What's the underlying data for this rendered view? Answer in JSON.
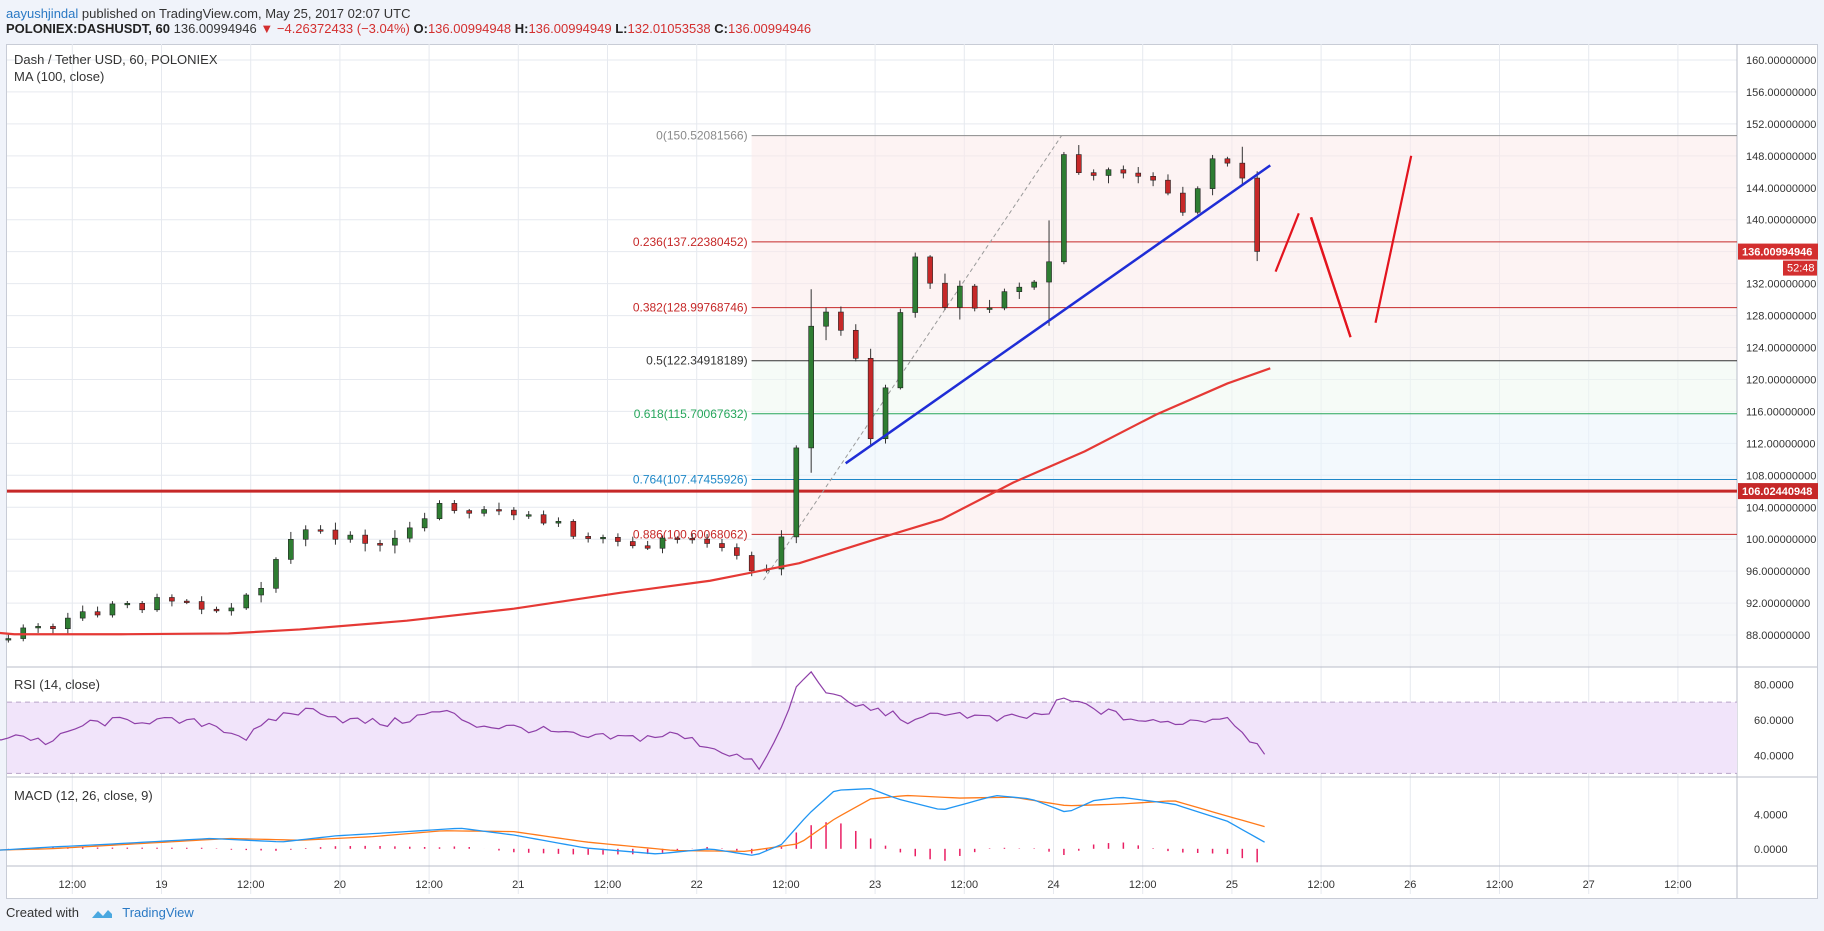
{
  "header": {
    "author": "aayushjindal",
    "published_text": "published on TradingView.com, May 25, 2017 02:07 UTC",
    "symbol": "POLONIEX:DASHUSDT, 60",
    "last": "136.00994946",
    "change": "▼ −4.26372433 (−3.04%)",
    "o_label": "O:",
    "o_value": "136.00994948",
    "h_label": "H:",
    "h_value": "136.00994949",
    "l_label": "L:",
    "l_value": "132.01053538",
    "c_label": "C:",
    "c_value": "136.00994946"
  },
  "legend": {
    "title": "Dash / Tether USD, 60, POLONIEX",
    "ma": "MA (100, close)",
    "rsi": "RSI (14, close)",
    "macd": "MACD (12, 26, close, 9)"
  },
  "footer": {
    "created_with": "Created with",
    "brand": "TradingView"
  },
  "chart_data": {
    "type": "candlestick",
    "colors": {
      "up": "#2e7d32",
      "down": "#c62828",
      "ma": "#e53935",
      "trendline": "#1f2dd6",
      "rsi": "#8e3fa8",
      "macd": "#2196f3",
      "signal": "#ff7a1a",
      "hist": "#e91e63",
      "support": "#c62828"
    },
    "x_ticks": [
      {
        "label": "12:00",
        "d": 0.125
      },
      {
        "label": "19",
        "d": 0.625
      },
      {
        "label": "12:00",
        "d": 1.125
      },
      {
        "label": "20",
        "d": 1.625
      },
      {
        "label": "12:00",
        "d": 2.125
      },
      {
        "label": "21",
        "d": 2.625
      },
      {
        "label": "12:00",
        "d": 3.125
      },
      {
        "label": "22",
        "d": 3.625
      },
      {
        "label": "12:00",
        "d": 4.125
      },
      {
        "label": "23",
        "d": 4.625
      },
      {
        "label": "12:00",
        "d": 5.125
      },
      {
        "label": "24",
        "d": 5.625
      },
      {
        "label": "12:00",
        "d": 6.125
      },
      {
        "label": "25",
        "d": 6.625
      },
      {
        "label": "12:00",
        "d": 7.125
      },
      {
        "label": "26",
        "d": 7.625
      },
      {
        "label": "12:00",
        "d": 8.125
      },
      {
        "label": "27",
        "d": 8.625
      },
      {
        "label": "12:00",
        "d": 9.125
      }
    ],
    "price_axis": {
      "range": [
        84,
        162
      ],
      "ticks": [
        "88.00000000",
        "92.00000000",
        "96.00000000",
        "100.00000000",
        "104.00000000",
        "108.00000000",
        "112.00000000",
        "116.00000000",
        "120.00000000",
        "124.00000000",
        "128.00000000",
        "132.00000000",
        "136.00000000",
        "140.00000000",
        "144.00000000",
        "148.00000000",
        "152.00000000",
        "156.00000000",
        "160.00000000"
      ],
      "last_price_label": "136.00994946",
      "countdown": "52:48",
      "support_label": "106.02440948"
    },
    "support_level": 106.02440948,
    "fib_levels": [
      {
        "ratio": "0",
        "value": "150.52081566",
        "price": 150.52081566,
        "color": "#8a8a8a"
      },
      {
        "ratio": "0.236",
        "value": "137.22380452",
        "price": 137.22380452,
        "color": "#c62828"
      },
      {
        "ratio": "0.382",
        "value": "128.99768746",
        "price": 128.99768746,
        "color": "#c62828"
      },
      {
        "ratio": "0.5",
        "value": "122.34918189",
        "price": 122.34918189,
        "color": "#333333"
      },
      {
        "ratio": "0.618",
        "value": "115.70067632",
        "price": 115.70067632,
        "color": "#26a65b"
      },
      {
        "ratio": "0.764",
        "value": "107.47455926",
        "price": 107.47455926,
        "color": "#1e88c8"
      },
      {
        "ratio": "0.886",
        "value": "100.60068062",
        "price": 100.60068062,
        "color": "#c62828"
      }
    ],
    "rsi_axis": {
      "ticks": [
        "40.0000",
        "60.0000",
        "80.0000"
      ],
      "range": [
        28,
        88
      ],
      "band": [
        30,
        70
      ]
    },
    "macd_axis": {
      "ticks": [
        "0.0000",
        "4.0000"
      ],
      "range": [
        -2,
        8
      ]
    },
    "swing": {
      "low_day": 4.0,
      "low_price": 94.9,
      "high_day": 5.67,
      "high_price": 150.52
    },
    "trendline": [
      [
        4.46,
        109.5
      ],
      [
        6.84,
        146.8
      ]
    ],
    "projection": [
      [
        6.87,
        133.5
      ],
      [
        7.0,
        140.8
      ],
      [
        7.07,
        140.3
      ],
      [
        7.29,
        125.3
      ],
      [
        7.43,
        127.1
      ],
      [
        7.63,
        148.0
      ]
    ],
    "ma_points": [
      [
        -0.4,
        88.5
      ],
      [
        -0.2,
        88.1
      ],
      [
        0.4,
        88.1
      ],
      [
        1.0,
        88.2
      ],
      [
        1.4,
        88.7
      ],
      [
        2.0,
        89.8
      ],
      [
        2.6,
        91.3
      ],
      [
        3.2,
        93.3
      ],
      [
        3.7,
        94.8
      ],
      [
        4.2,
        97.0
      ],
      [
        4.6,
        99.8
      ],
      [
        5.0,
        102.5
      ],
      [
        5.4,
        107.1
      ],
      [
        5.8,
        111.0
      ],
      [
        6.2,
        115.6
      ],
      [
        6.6,
        119.5
      ],
      [
        6.84,
        121.4
      ]
    ],
    "candle_keys": [
      [
        -0.4,
        86.3,
        87.3
      ],
      [
        0.0,
        89.0,
        90.0
      ],
      [
        0.3,
        90.2,
        91.4
      ],
      [
        0.6,
        91.8,
        92.5
      ],
      [
        1.0,
        90.8,
        91.2
      ],
      [
        1.2,
        94.0,
        95.3
      ],
      [
        1.4,
        100.8,
        102.0
      ],
      [
        1.7,
        98.8,
        100.2
      ],
      [
        2.0,
        100.2,
        101.6
      ],
      [
        2.2,
        104.0,
        104.4
      ],
      [
        2.5,
        102.8,
        104.2
      ],
      [
        2.75,
        102.2,
        102.8
      ],
      [
        3.0,
        100.0,
        100.6
      ],
      [
        3.3,
        98.8,
        99.4
      ],
      [
        3.6,
        100.0,
        100.4
      ],
      [
        3.85,
        97.9,
        98.4
      ],
      [
        4.0,
        94.6,
        95.5
      ],
      [
        4.1,
        100.5,
        101.6
      ],
      [
        4.2,
        104.2,
        111.8
      ],
      [
        4.28,
        125.6,
        133.9
      ],
      [
        4.4,
        125.4,
        126.8
      ],
      [
        4.5,
        122.9,
        124.2
      ],
      [
        4.6,
        112.0,
        114.8
      ],
      [
        4.7,
        117.8,
        119.2
      ],
      [
        4.82,
        135.0,
        136.0
      ],
      [
        5.0,
        129.6,
        132.8
      ],
      [
        5.2,
        128.6,
        130.0
      ],
      [
        5.4,
        130.8,
        132.2
      ],
      [
        5.55,
        132.8,
        133.7
      ],
      [
        5.6,
        136.5,
        145.5
      ],
      [
        5.67,
        148.0,
        148.8
      ],
      [
        5.8,
        144.6,
        146.6
      ],
      [
        6.0,
        146.0,
        147.5
      ],
      [
        6.2,
        144.3,
        145.2
      ],
      [
        6.35,
        141.0,
        142.0
      ],
      [
        6.5,
        146.2,
        147.4
      ],
      [
        6.62,
        147.4,
        148.0
      ],
      [
        6.7,
        141.0,
        145.0
      ],
      [
        6.75,
        136.1,
        139.0
      ],
      [
        6.82,
        136.0,
        136.3
      ]
    ],
    "rsi_keys": [
      [
        -0.4,
        47
      ],
      [
        -0.2,
        52
      ],
      [
        0.0,
        47
      ],
      [
        0.2,
        58
      ],
      [
        0.5,
        60
      ],
      [
        0.9,
        58
      ],
      [
        1.1,
        50
      ],
      [
        1.3,
        63
      ],
      [
        1.5,
        66
      ],
      [
        1.65,
        60
      ],
      [
        1.9,
        58
      ],
      [
        2.2,
        65
      ],
      [
        2.4,
        57
      ],
      [
        2.7,
        55
      ],
      [
        3.0,
        50
      ],
      [
        3.3,
        50
      ],
      [
        3.5,
        52
      ],
      [
        3.7,
        45
      ],
      [
        3.85,
        40
      ],
      [
        3.99,
        33
      ],
      [
        4.1,
        55
      ],
      [
        4.2,
        82
      ],
      [
        4.27,
        86
      ],
      [
        4.4,
        72
      ],
      [
        4.6,
        66
      ],
      [
        4.7,
        64
      ],
      [
        4.85,
        58
      ],
      [
        5.0,
        65
      ],
      [
        5.3,
        60
      ],
      [
        5.5,
        62
      ],
      [
        5.6,
        64
      ],
      [
        5.67,
        72
      ],
      [
        5.8,
        68
      ],
      [
        6.0,
        62
      ],
      [
        6.2,
        58
      ],
      [
        6.45,
        60
      ],
      [
        6.6,
        62
      ],
      [
        6.7,
        52
      ],
      [
        6.8,
        43
      ],
      [
        6.84,
        41
      ]
    ],
    "macd_keys": [
      [
        -0.4,
        -0.3
      ],
      [
        0.0,
        0.2
      ],
      [
        0.3,
        0.5
      ],
      [
        0.9,
        1.2
      ],
      [
        1.3,
        0.8
      ],
      [
        1.6,
        1.5
      ],
      [
        2.0,
        2.0
      ],
      [
        2.3,
        2.4
      ],
      [
        2.6,
        1.6
      ],
      [
        3.0,
        0.1
      ],
      [
        3.4,
        -0.6
      ],
      [
        3.7,
        0.0
      ],
      [
        3.95,
        -0.8
      ],
      [
        4.1,
        0.5
      ],
      [
        4.25,
        4.0
      ],
      [
        4.4,
        6.8
      ],
      [
        4.6,
        7.0
      ],
      [
        4.75,
        5.8
      ],
      [
        5.0,
        4.5
      ],
      [
        5.3,
        6.2
      ],
      [
        5.5,
        5.8
      ],
      [
        5.7,
        4.2
      ],
      [
        5.85,
        5.6
      ],
      [
        6.0,
        6.0
      ],
      [
        6.3,
        5.2
      ],
      [
        6.6,
        3.2
      ],
      [
        6.84,
        0.4
      ]
    ],
    "signal_keys": [
      [
        -0.4,
        -0.2
      ],
      [
        0.0,
        0.0
      ],
      [
        0.5,
        0.6
      ],
      [
        1.0,
        1.2
      ],
      [
        1.4,
        1.0
      ],
      [
        1.8,
        1.4
      ],
      [
        2.2,
        2.1
      ],
      [
        2.6,
        2.0
      ],
      [
        3.0,
        0.8
      ],
      [
        3.5,
        -0.2
      ],
      [
        3.9,
        -0.3
      ],
      [
        4.2,
        0.6
      ],
      [
        4.4,
        3.5
      ],
      [
        4.6,
        5.8
      ],
      [
        4.8,
        6.2
      ],
      [
        5.1,
        5.9
      ],
      [
        5.4,
        6.0
      ],
      [
        5.7,
        5.0
      ],
      [
        6.0,
        5.2
      ],
      [
        6.3,
        5.6
      ],
      [
        6.6,
        3.8
      ],
      [
        6.84,
        2.4
      ]
    ]
  }
}
